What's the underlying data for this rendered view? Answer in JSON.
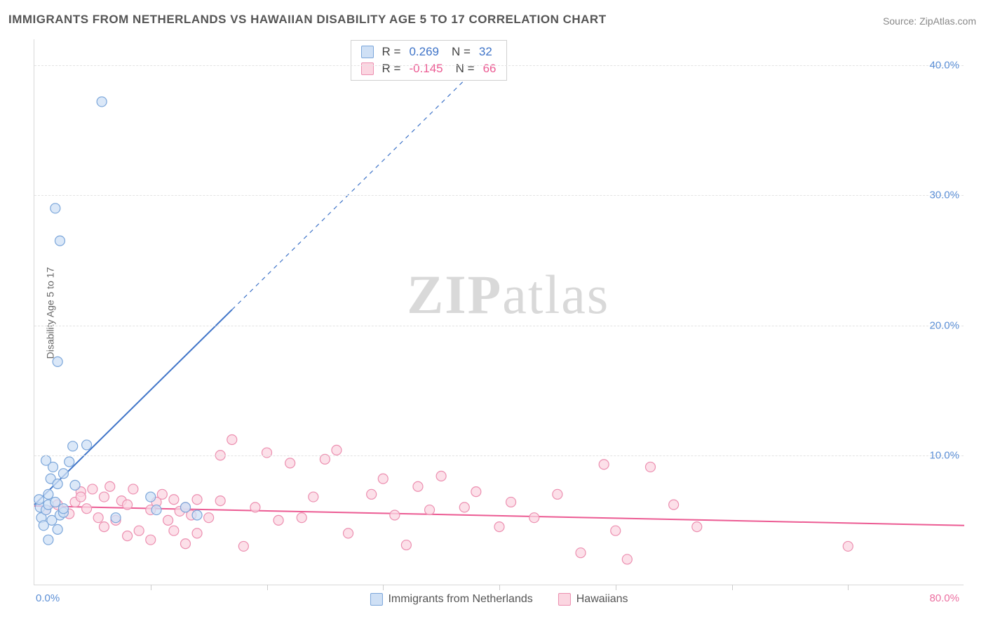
{
  "title": "IMMIGRANTS FROM NETHERLANDS VS HAWAIIAN DISABILITY AGE 5 TO 17 CORRELATION CHART",
  "source_label": "Source: ",
  "source_value": "ZipAtlas.com",
  "y_axis_label": "Disability Age 5 to 17",
  "chart": {
    "type": "scatter",
    "xlim": [
      0,
      80
    ],
    "ylim": [
      0,
      42
    ],
    "x_min_label": "0.0%",
    "x_max_label": "80.0%",
    "x_label_color_min": "#5b8fd6",
    "x_label_color_max": "#ec6fa0",
    "y_ticks": [
      10,
      20,
      30,
      40
    ],
    "y_tick_labels": [
      "10.0%",
      "20.0%",
      "30.0%",
      "40.0%"
    ],
    "y_tick_color": "#5b8fd6",
    "x_vtick_positions": [
      10,
      20,
      30,
      40,
      50,
      60,
      70
    ],
    "grid_color": "#e3e3e3",
    "background_color": "#ffffff",
    "axis_color": "#d8d8d8",
    "marker_radius": 7,
    "marker_stroke_width": 1.2,
    "line_width": 2,
    "dash_pattern": "6 6",
    "series": [
      {
        "name": "Immigrants from Netherlands",
        "fill": "#cfe0f5",
        "stroke": "#7ba6da",
        "line_color": "#3f74c8",
        "r_value": "0.269",
        "n_value": "32",
        "trend_solid": {
          "x1": 0,
          "y1": 6.2,
          "x2": 17,
          "y2": 21.2
        },
        "trend_dashed": {
          "x1": 17,
          "y1": 21.2,
          "x2": 40,
          "y2": 41.5
        },
        "points": [
          [
            0.5,
            6.0
          ],
          [
            0.6,
            5.2
          ],
          [
            0.8,
            4.6
          ],
          [
            1.0,
            5.8
          ],
          [
            1.2,
            7.0
          ],
          [
            1.4,
            8.2
          ],
          [
            1.6,
            9.1
          ],
          [
            1.0,
            9.6
          ],
          [
            1.2,
            6.2
          ],
          [
            1.5,
            5.0
          ],
          [
            2.0,
            7.8
          ],
          [
            2.2,
            5.4
          ],
          [
            2.5,
            8.6
          ],
          [
            3.0,
            9.5
          ],
          [
            3.3,
            10.7
          ],
          [
            2.0,
            4.3
          ],
          [
            1.2,
            3.5
          ],
          [
            0.4,
            6.6
          ],
          [
            1.8,
            6.4
          ],
          [
            2.5,
            5.6
          ],
          [
            3.5,
            7.7
          ],
          [
            4.5,
            10.8
          ],
          [
            7.0,
            5.2
          ],
          [
            10.0,
            6.8
          ],
          [
            10.5,
            5.8
          ],
          [
            13.0,
            6.0
          ],
          [
            14.0,
            5.4
          ],
          [
            2.0,
            17.2
          ],
          [
            2.2,
            26.5
          ],
          [
            1.8,
            29.0
          ],
          [
            5.8,
            37.2
          ],
          [
            2.5,
            5.9
          ]
        ]
      },
      {
        "name": "Hawaiians",
        "fill": "#fbd6e1",
        "stroke": "#ec8fb0",
        "line_color": "#ec5b93",
        "r_value": "-0.145",
        "n_value": "66",
        "trend_solid": {
          "x1": 0,
          "y1": 6.1,
          "x2": 80,
          "y2": 4.6
        },
        "trend_dashed": null,
        "points": [
          [
            1.0,
            5.8
          ],
          [
            2.0,
            6.2
          ],
          [
            3.0,
            5.5
          ],
          [
            3.5,
            6.4
          ],
          [
            4.0,
            7.2
          ],
          [
            4.0,
            6.8
          ],
          [
            4.5,
            5.9
          ],
          [
            5.0,
            7.4
          ],
          [
            5.5,
            5.2
          ],
          [
            6.0,
            4.5
          ],
          [
            6.0,
            6.8
          ],
          [
            6.5,
            7.6
          ],
          [
            7.0,
            5.0
          ],
          [
            7.5,
            6.5
          ],
          [
            8.0,
            3.8
          ],
          [
            8.0,
            6.2
          ],
          [
            8.5,
            7.4
          ],
          [
            9.0,
            4.2
          ],
          [
            10.0,
            5.8
          ],
          [
            10.0,
            3.5
          ],
          [
            10.5,
            6.4
          ],
          [
            11.0,
            7.0
          ],
          [
            11.5,
            5.0
          ],
          [
            12.0,
            4.2
          ],
          [
            12.0,
            6.6
          ],
          [
            12.5,
            5.7
          ],
          [
            13.0,
            6.0
          ],
          [
            13.0,
            3.2
          ],
          [
            13.5,
            5.4
          ],
          [
            14.0,
            6.6
          ],
          [
            14.0,
            4.0
          ],
          [
            15.0,
            5.2
          ],
          [
            16.0,
            6.5
          ],
          [
            16.0,
            10.0
          ],
          [
            17.0,
            11.2
          ],
          [
            18.0,
            3.0
          ],
          [
            19.0,
            6.0
          ],
          [
            20.0,
            10.2
          ],
          [
            21.0,
            5.0
          ],
          [
            22.0,
            9.4
          ],
          [
            23.0,
            5.2
          ],
          [
            24.0,
            6.8
          ],
          [
            25.0,
            9.7
          ],
          [
            26.0,
            10.4
          ],
          [
            27.0,
            4.0
          ],
          [
            29.0,
            7.0
          ],
          [
            30.0,
            8.2
          ],
          [
            31.0,
            5.4
          ],
          [
            32.0,
            3.1
          ],
          [
            33.0,
            7.6
          ],
          [
            34.0,
            5.8
          ],
          [
            35.0,
            8.4
          ],
          [
            37.0,
            6.0
          ],
          [
            38.0,
            7.2
          ],
          [
            40.0,
            4.5
          ],
          [
            41.0,
            6.4
          ],
          [
            43.0,
            5.2
          ],
          [
            45.0,
            7.0
          ],
          [
            47.0,
            2.5
          ],
          [
            49.0,
            9.3
          ],
          [
            50.0,
            4.2
          ],
          [
            53.0,
            9.1
          ],
          [
            55.0,
            6.2
          ],
          [
            51.0,
            2.0
          ],
          [
            57.0,
            4.5
          ],
          [
            70.0,
            3.0
          ]
        ]
      }
    ],
    "legend_top": {
      "r_label": "R =",
      "n_label": "N ="
    },
    "watermark": {
      "bold": "ZIP",
      "rest": "atlas"
    }
  }
}
